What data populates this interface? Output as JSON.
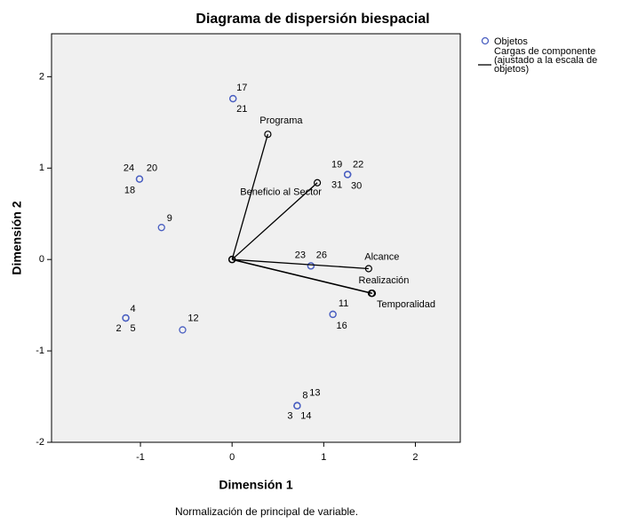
{
  "chart_data": {
    "type": "scatter",
    "title": "Diagrama de dispersión biespacial",
    "xlabel": "Dimensión 1",
    "ylabel": "Dimensión 2",
    "note": "Normalización de principal de variable.",
    "xlim": [
      -1.97,
      2.49
    ],
    "ylim": [
      -2,
      2.47
    ],
    "xticks": [
      -1,
      0,
      1,
      2
    ],
    "yticks": [
      -2,
      -1,
      0,
      1,
      2
    ],
    "series": [
      {
        "name": "Objetos",
        "color": "#4a5fc1",
        "type": "scatter",
        "labels": [
          "17",
          "21",
          "24",
          "20",
          "18",
          "9",
          "19",
          "22",
          "31",
          "30",
          "23",
          "26",
          "11",
          "16",
          "4",
          "2",
          "5",
          "12",
          "8",
          "13",
          "3",
          "14"
        ],
        "x": [
          0.01,
          0.01,
          -1.01,
          -1.01,
          -1.01,
          -0.77,
          1.26,
          1.26,
          1.26,
          1.26,
          0.86,
          0.86,
          1.1,
          1.1,
          -1.16,
          -1.16,
          -1.16,
          -0.54,
          0.71,
          0.71,
          0.71,
          0.71
        ],
        "y": [
          1.76,
          1.76,
          0.88,
          0.88,
          0.88,
          0.35,
          0.93,
          0.93,
          0.93,
          0.93,
          -0.07,
          -0.07,
          -0.6,
          -0.6,
          -0.64,
          -0.64,
          -0.64,
          -0.77,
          -1.6,
          -1.6,
          -1.6,
          -1.6
        ]
      },
      {
        "name": "Cargas de componente (ajustado a la escala de objetos)",
        "color": "#000000",
        "type": "vector",
        "labels": [
          "Programa",
          "Beneficio al Sector",
          "Alcance",
          "Realización",
          "Temporalidad"
        ],
        "x": [
          0.39,
          0.93,
          1.49,
          1.52,
          1.53
        ],
        "y": [
          1.37,
          0.84,
          -0.1,
          -0.37,
          -0.37
        ]
      }
    ]
  }
}
